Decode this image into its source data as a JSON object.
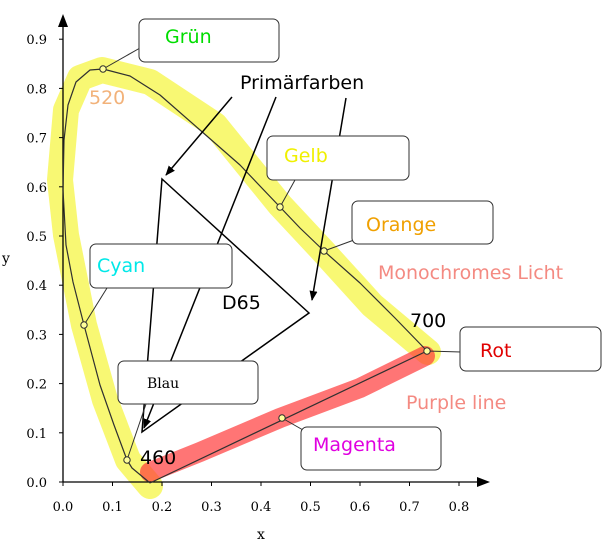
{
  "axes": {
    "x_label": "x",
    "y_label": "y",
    "x_ticks": [
      "0.0",
      "0.1",
      "0.2",
      "0.3",
      "0.4",
      "0.5",
      "0.6",
      "0.7",
      "0.8"
    ],
    "y_ticks": [
      "0.0",
      "0.1",
      "0.2",
      "0.3",
      "0.4",
      "0.5",
      "0.6",
      "0.7",
      "0.8",
      "0.9"
    ]
  },
  "labels": {
    "gruen": "Grün",
    "primaerfarben": "Primärfarben",
    "wl_520": "520",
    "gelb": "Gelb",
    "orange": "Orange",
    "monochromes": "Monochromes Licht",
    "cyan": "Cyan",
    "d65": "D65",
    "wl_700": "700",
    "rot": "Rot",
    "blau": "Blau",
    "purple_line": "Purple line",
    "magenta": "Magenta",
    "wl_460": "460"
  },
  "colors": {
    "gruen": "#00dd00",
    "wl_520": "#f2b27a",
    "gelb": "#f0f000",
    "orange": "#f0a000",
    "monochromes": "#f48a82",
    "cyan": "#00e8e8",
    "rot": "#e00000",
    "purple_line": "#f48a82",
    "magenta": "#e000e0",
    "yellow_band": "#f3f200",
    "red_band": "#ff3a3a"
  }
}
